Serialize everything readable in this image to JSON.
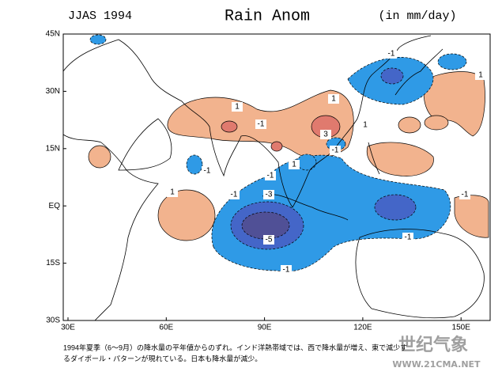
{
  "header": {
    "season": "JJAS 1994",
    "title": "Rain Anom",
    "units": "(in mm/day)"
  },
  "map": {
    "lat_labels": [
      "45N",
      "30N",
      "15N",
      "EQ",
      "15S",
      "30S"
    ],
    "lon_labels": [
      "30E",
      "60E",
      "90E",
      "120E",
      "150E"
    ],
    "contour_labels": [
      "-1",
      "1",
      "1",
      "-1",
      "1",
      "1",
      "3",
      "-1",
      "1",
      "-1",
      "-1",
      "1",
      "-1",
      "-3",
      "-1",
      "-5",
      "-1",
      "-1"
    ]
  },
  "caption": [
    "1994年夏季（6～9月）の降水量の平年値からのずれ。インド洋熱帯域では、西で降水量が増え、東で減少す",
    "るダイポール・パターンが現れている。日本も降水量が減少。"
  ],
  "watermark": {
    "logo": "世纪气象",
    "url": "WWW.21CMA.NET"
  }
}
